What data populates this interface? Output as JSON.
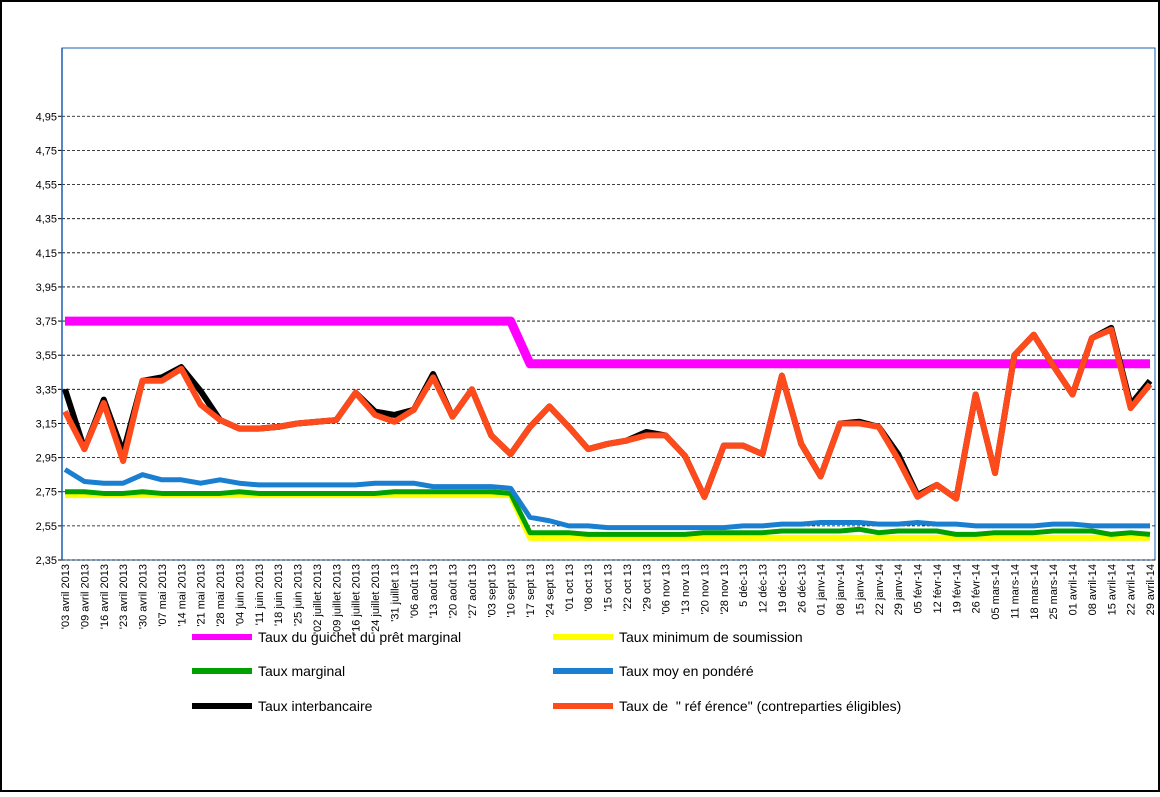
{
  "chart_data": {
    "type": "line",
    "categories": [
      "'03 avril 2013",
      "'09 avril 2013",
      "'16 avril 2013",
      "'23 avril 2013",
      "'30 avril 2013",
      "'07 mai 2013",
      "'14 mai 2013",
      "'21 mai 2013",
      "'28 mai 2013",
      "'04 juin 2013",
      "'11 juin 2013",
      "'18 juin 2013",
      "'25 juin 2013",
      "'02 juillet 2013",
      "'09 juillet 2013",
      "'16 juillet 2013",
      "'24 juillet 2013",
      "'31 juillet 13",
      "'06 août 13",
      "'13 août 13",
      "'20 août 13",
      "'27 août 13",
      "'03 sept 13",
      "'10 sept 13",
      "'17 sept 13",
      "'24 sept 13",
      "'01 oct 13",
      "'08 oct 13",
      "'15 oct 13",
      "'22 oct 13",
      "'29 oct 13",
      "'06 nov 13",
      "'13 nov 13",
      "'20 nov 13",
      "'28 nov 13",
      "5 déc-13",
      "12 déc-13",
      "19 déc-13",
      "26 déc-13",
      "01 janv-14",
      "08 janv-14",
      "15 janv-14",
      "22 janv-14",
      "29 janv-14",
      "05 févr-14",
      "12 févr-14",
      "19 févr-14",
      "26 févr-14",
      "05 mars-14",
      "11 mars-14",
      "18 mars-14",
      "25 mars-14",
      "01 avril-14",
      "08 avril-14",
      "15 avril-14",
      "22 avril-14",
      "29 avril-14"
    ],
    "series": [
      {
        "name": "Taux du guichet du prêt marginal",
        "color": "#ff00ff",
        "values": [
          3.75,
          3.75,
          3.75,
          3.75,
          3.75,
          3.75,
          3.75,
          3.75,
          3.75,
          3.75,
          3.75,
          3.75,
          3.75,
          3.75,
          3.75,
          3.75,
          3.75,
          3.75,
          3.75,
          3.75,
          3.75,
          3.75,
          3.75,
          3.75,
          3.5,
          3.5,
          3.5,
          3.5,
          3.5,
          3.5,
          3.5,
          3.5,
          3.5,
          3.5,
          3.5,
          3.5,
          3.5,
          3.5,
          3.5,
          3.5,
          3.5,
          3.5,
          3.5,
          3.5,
          3.5,
          3.5,
          3.5,
          3.5,
          3.5,
          3.5,
          3.5,
          3.5,
          3.5,
          3.5,
          3.5,
          3.5,
          3.5
        ]
      },
      {
        "name": "Taux minimum de soumission",
        "color": "#ffff00",
        "values": [
          2.73,
          2.73,
          2.73,
          2.73,
          2.73,
          2.73,
          2.73,
          2.73,
          2.73,
          2.73,
          2.73,
          2.73,
          2.73,
          2.73,
          2.73,
          2.73,
          2.73,
          2.73,
          2.73,
          2.73,
          2.73,
          2.73,
          2.73,
          2.73,
          2.48,
          2.48,
          2.48,
          2.48,
          2.48,
          2.48,
          2.48,
          2.48,
          2.48,
          2.48,
          2.48,
          2.48,
          2.48,
          2.48,
          2.48,
          2.48,
          2.48,
          2.48,
          2.48,
          2.48,
          2.48,
          2.48,
          2.48,
          2.48,
          2.48,
          2.48,
          2.48,
          2.48,
          2.48,
          2.48,
          2.48,
          2.48,
          2.48
        ]
      },
      {
        "name": "Taux marginal",
        "color": "#00a000",
        "values": [
          2.75,
          2.75,
          2.74,
          2.74,
          2.75,
          2.74,
          2.74,
          2.74,
          2.74,
          2.75,
          2.74,
          2.74,
          2.74,
          2.74,
          2.74,
          2.74,
          2.74,
          2.75,
          2.75,
          2.75,
          2.75,
          2.75,
          2.75,
          2.74,
          2.51,
          2.51,
          2.51,
          2.5,
          2.5,
          2.5,
          2.5,
          2.5,
          2.5,
          2.51,
          2.51,
          2.51,
          2.51,
          2.52,
          2.52,
          2.52,
          2.52,
          2.53,
          2.51,
          2.52,
          2.52,
          2.52,
          2.5,
          2.5,
          2.51,
          2.51,
          2.51,
          2.52,
          2.52,
          2.52,
          2.5,
          2.51,
          2.5
        ]
      },
      {
        "name": "Taux moy en pondéré",
        "color": "#1a7fd0",
        "values": [
          2.88,
          2.81,
          2.8,
          2.8,
          2.85,
          2.82,
          2.82,
          2.8,
          2.82,
          2.8,
          2.79,
          2.79,
          2.79,
          2.79,
          2.79,
          2.79,
          2.8,
          2.8,
          2.8,
          2.78,
          2.78,
          2.78,
          2.78,
          2.77,
          2.6,
          2.58,
          2.55,
          2.55,
          2.54,
          2.54,
          2.54,
          2.54,
          2.54,
          2.54,
          2.54,
          2.55,
          2.55,
          2.56,
          2.56,
          2.57,
          2.57,
          2.57,
          2.56,
          2.56,
          2.57,
          2.56,
          2.56,
          2.55,
          2.55,
          2.55,
          2.55,
          2.56,
          2.56,
          2.55,
          2.55,
          2.55,
          2.55
        ]
      },
      {
        "name": "Taux interbancaire",
        "color": "#000000",
        "values": [
          3.35,
          3.0,
          3.29,
          2.98,
          3.4,
          3.42,
          3.48,
          3.34,
          3.17,
          3.12,
          3.12,
          3.13,
          3.15,
          3.16,
          3.17,
          3.33,
          3.22,
          3.2,
          3.23,
          3.44,
          3.19,
          3.35,
          3.08,
          2.97,
          3.13,
          3.25,
          3.13,
          3.0,
          3.03,
          3.05,
          3.1,
          3.08,
          2.96,
          2.72,
          3.02,
          3.02,
          2.97,
          3.43,
          3.03,
          2.84,
          3.15,
          3.16,
          3.13,
          2.97,
          2.73,
          2.79,
          2.71,
          3.32,
          2.86,
          3.55,
          3.67,
          3.49,
          3.32,
          3.65,
          3.71,
          3.26,
          3.4
        ]
      },
      {
        "name": "Taux de  \" réf érence\" (contreparties éligibles)",
        "color": "#ff4a1c",
        "values": [
          3.22,
          3.0,
          3.27,
          2.93,
          3.4,
          3.4,
          3.47,
          3.26,
          3.17,
          3.12,
          3.12,
          3.13,
          3.15,
          3.16,
          3.17,
          3.33,
          3.2,
          3.16,
          3.23,
          3.42,
          3.19,
          3.35,
          3.08,
          2.97,
          3.13,
          3.25,
          3.13,
          3.0,
          3.03,
          3.05,
          3.08,
          3.08,
          2.96,
          2.72,
          3.02,
          3.02,
          2.97,
          3.43,
          3.03,
          2.84,
          3.15,
          3.15,
          3.13,
          2.94,
          2.72,
          2.79,
          2.71,
          3.32,
          2.86,
          3.55,
          3.67,
          3.49,
          3.32,
          3.65,
          3.7,
          3.24,
          3.38
        ]
      }
    ],
    "ylim": [
      2.35,
      5.35
    ],
    "yticks": [
      {
        "value": 2.35,
        "label": "2,35"
      },
      {
        "value": 2.55,
        "label": "2,55"
      },
      {
        "value": 2.75,
        "label": "2,75"
      },
      {
        "value": 2.95,
        "label": "2,95"
      },
      {
        "value": 3.15,
        "label": "3,15"
      },
      {
        "value": 3.35,
        "label": "3,35"
      },
      {
        "value": 3.55,
        "label": "3,55"
      },
      {
        "value": 3.75,
        "label": "3,75"
      },
      {
        "value": 3.95,
        "label": "3,95"
      },
      {
        "value": 4.15,
        "label": "4,15"
      },
      {
        "value": 4.35,
        "label": "4,35"
      },
      {
        "value": 4.55,
        "label": "4,55"
      },
      {
        "value": 4.75,
        "label": "4,75"
      },
      {
        "value": 4.95,
        "label": "4,95"
      }
    ],
    "grid": true,
    "legend": "bottom"
  }
}
